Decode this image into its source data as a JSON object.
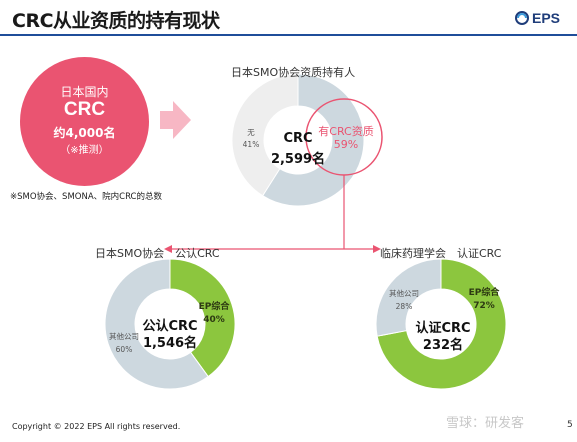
{
  "title": "CRC从业资质的持有现状",
  "logo": {
    "text": "EPS",
    "icon": "eps-logo-icon"
  },
  "total": {
    "line1": "日本国内",
    "line2": "CRC",
    "line3": "约4,000名",
    "line4": "（※推测）",
    "note": "※SMO协会、SMONA、院内CRC的总数"
  },
  "colors": {
    "pink": "#ea5471",
    "green": "#8cc63e",
    "gray_light": "#eeeeee",
    "gray_blue": "#cdd8df",
    "title_rule": "#1f4e9a"
  },
  "chart_data": [
    {
      "type": "pie",
      "title": "日本SMO协会资质持有人",
      "center_label": "CRC",
      "center_value": "2,599名",
      "slices": [
        {
          "label": "有CRC资质",
          "value": 59,
          "value_label": "59%"
        },
        {
          "label": "无",
          "value": 41,
          "value_label": "41%"
        }
      ]
    },
    {
      "type": "pie",
      "title": "日本SMO协会　公认CRC",
      "center_label": "公认CRC",
      "center_value": "1,546名",
      "slices": [
        {
          "label": "EP综合",
          "value": 40,
          "value_label": "40%"
        },
        {
          "label": "其他公司",
          "value": 60,
          "value_label": "60%"
        }
      ]
    },
    {
      "type": "pie",
      "title": "临床药理学会　认证CRC",
      "center_label": "认证CRC",
      "center_value": "232名",
      "slices": [
        {
          "label": "EP综合",
          "value": 72,
          "value_label": "72%"
        },
        {
          "label": "其他公司",
          "value": 28,
          "value_label": "28%"
        }
      ]
    }
  ],
  "footer": "Copyright © 2022 EPS All rights reserved.",
  "watermark": "雪球：研发客",
  "page_number": "5"
}
